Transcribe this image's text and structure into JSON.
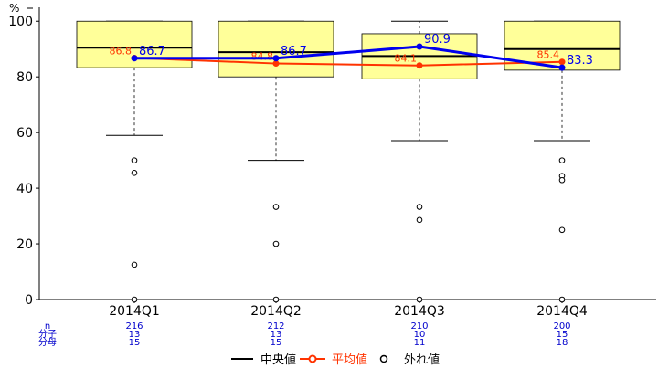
{
  "chart_data": {
    "type": "box",
    "y_unit_label": "%",
    "ylim": [
      0,
      105
    ],
    "yticks": [
      0,
      20,
      40,
      60,
      80,
      100
    ],
    "categories": [
      "2014Q1",
      "2014Q2",
      "2014Q3",
      "2014Q4"
    ],
    "boxes": [
      {
        "category": "2014Q1",
        "q1": 83.3,
        "median": 90.5,
        "q3": 100,
        "whisker_low": 59,
        "whisker_high": 100,
        "outliers": [
          50,
          45.5,
          12.5,
          0
        ]
      },
      {
        "category": "2014Q2",
        "q1": 80,
        "median": 88.9,
        "q3": 100,
        "whisker_low": 50,
        "whisker_high": 100,
        "outliers": [
          33.3,
          20,
          0
        ]
      },
      {
        "category": "2014Q3",
        "q1": 79.3,
        "median": 87.5,
        "q3": 95.5,
        "whisker_low": 57.1,
        "whisker_high": 100,
        "outliers": [
          33.3,
          28.6,
          0
        ]
      },
      {
        "category": "2014Q4",
        "q1": 82.4,
        "median": 90,
        "q3": 100,
        "whisker_low": 57.1,
        "whisker_high": 100,
        "outliers": [
          50,
          44.4,
          42.9,
          25,
          0
        ]
      }
    ],
    "series": [
      {
        "name": "平均値",
        "values": [
          86.8,
          84.8,
          84.1,
          85.4
        ],
        "labels": [
          "86.8",
          "84.8",
          "84.1",
          "85.4"
        ],
        "color": "#ff3300"
      },
      {
        "name": "",
        "values": [
          86.7,
          86.7,
          90.9,
          83.3
        ],
        "labels": [
          "86.7",
          "86.7",
          "90.9",
          "83.3"
        ],
        "color": "#0000ee"
      }
    ],
    "counts": {
      "row_labels": [
        "n",
        "分子",
        "分母"
      ],
      "n": [
        "216",
        "212",
        "210",
        "200"
      ],
      "numerator": [
        "13",
        "13",
        "10",
        "15"
      ],
      "denominator": [
        "15",
        "15",
        "11",
        "18"
      ]
    },
    "legend": {
      "position": "bottom",
      "items": [
        {
          "key": "median",
          "label": "中央値"
        },
        {
          "key": "mean",
          "label": "平均値"
        },
        {
          "key": "outlier",
          "label": "外れ値"
        }
      ]
    },
    "colors": {
      "box_fill": "#ffff99",
      "mean": "#ff3300",
      "ratio": "#0000ee",
      "axis": "#000000",
      "count_text": "#0000cc"
    }
  }
}
